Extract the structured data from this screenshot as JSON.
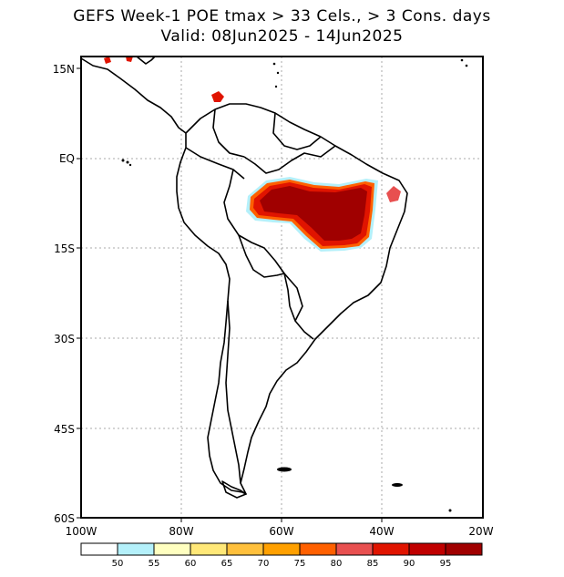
{
  "title_line1": "GEFS Week-1 POE tmax > 33 Cels., > 3 Cons. days",
  "title_line2": "Valid: 08Jun2025 - 14Jun2025",
  "lat_labels": [
    "15N",
    "EQ",
    "15S",
    "30S",
    "45S",
    "60S"
  ],
  "lon_labels": [
    "100W",
    "80W",
    "60W",
    "40W",
    "20W"
  ],
  "colorbar": {
    "labels": [
      "50",
      "55",
      "60",
      "65",
      "70",
      "75",
      "80",
      "85",
      "90",
      "95"
    ],
    "colors": [
      "#ffffff",
      "#b4f0fa",
      "#ffffc0",
      "#ffe878",
      "#ffc03c",
      "#ffa000",
      "#ff6000",
      "#e85050",
      "#e01400",
      "#c00000",
      "#a00000"
    ]
  }
}
